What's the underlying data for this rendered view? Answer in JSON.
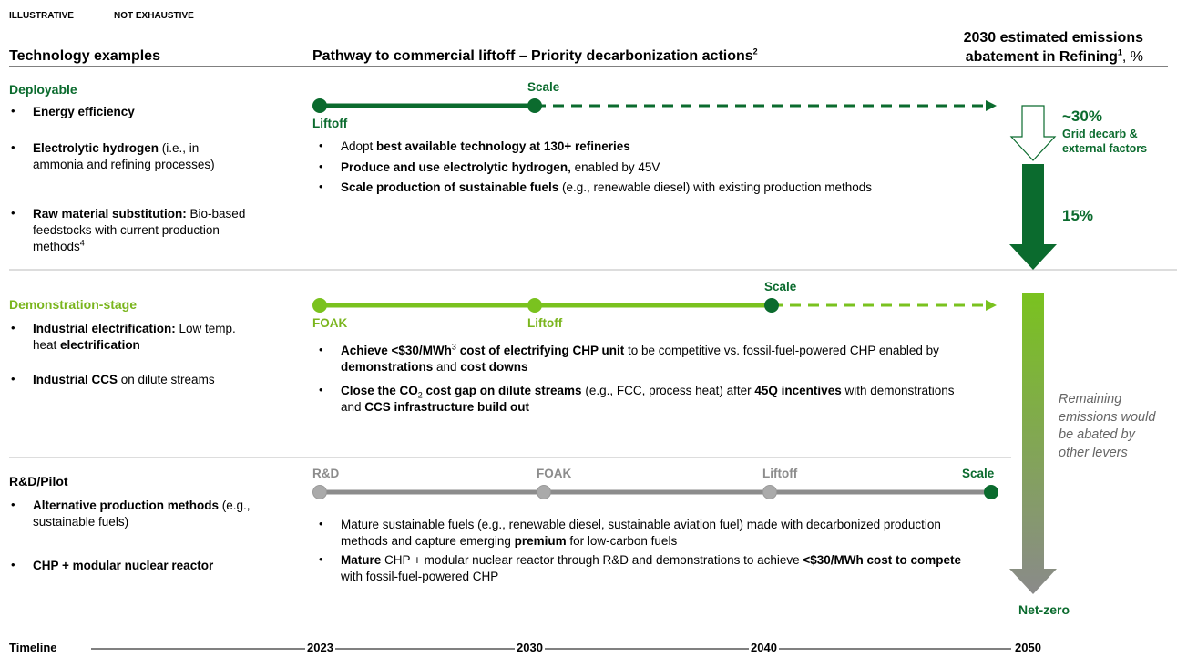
{
  "labels": {
    "illustrative": "ILLUSTRATIVE",
    "not_exhaustive": "NOT EXHAUSTIVE"
  },
  "headers": {
    "technology": "Technology examples",
    "pathway": [
      {
        "text": "Pathway to commercial liftoff – Priority decarbonization actions"
      },
      {
        "text": "2",
        "sup": true
      }
    ],
    "abatement": [
      [
        {
          "text": "2030 estimated emissions"
        }
      ],
      [
        {
          "text": "abatement in Refining"
        },
        {
          "text": "1",
          "sup": true
        },
        {
          "text": ", %",
          "normal": true
        }
      ]
    ]
  },
  "sections": [
    {
      "title": "Deployable",
      "color": "#0b6b2e",
      "examples": [
        [
          {
            "text": "Energy efficiency",
            "bold": true
          }
        ],
        [
          {
            "text": "Electrolytic hydrogen",
            "bold": true
          },
          {
            "text": " (i.e., in ammonia and refining processes)"
          }
        ],
        [
          {
            "text": "Raw material substitution:",
            "bold": true
          },
          {
            "text": " Bio-based feedstocks with current production methods"
          },
          {
            "text": "4",
            "sup": true
          }
        ]
      ],
      "milestones": [
        {
          "label": "Liftoff",
          "position": "below"
        },
        {
          "label": "Scale",
          "position": "above"
        }
      ],
      "actions": [
        [
          {
            "text": "Adopt "
          },
          {
            "text": "best available technology at 130+ refineries",
            "bold": true
          }
        ],
        [
          {
            "text": "Produce and use electrolytic hydrogen,",
            "bold": true
          },
          {
            "text": " enabled by 45V"
          }
        ],
        [
          {
            "text": "Scale production of sustainable fuels",
            "bold": true
          },
          {
            "text": " (e.g., renewable diesel) with existing production methods"
          }
        ]
      ]
    },
    {
      "title": "Demonstration-stage",
      "color": "#7ab51d",
      "examples": [
        [
          {
            "text": "Industrial electrification:",
            "bold": true
          },
          {
            "text": " Low temp. heat "
          },
          {
            "text": "electrification",
            "bold": true
          }
        ],
        [
          {
            "text": "Industrial CCS",
            "bold": true
          },
          {
            "text": " on dilute streams"
          }
        ]
      ],
      "milestones": [
        {
          "label": "FOAK",
          "position": "below"
        },
        {
          "label": "Liftoff",
          "position": "below"
        },
        {
          "label": "Scale",
          "position": "above",
          "color": "#0b6b2e"
        }
      ],
      "actions": [
        [
          {
            "text": "Achieve <$30/MWh",
            "bold": true
          },
          {
            "text": "3",
            "sup": true
          },
          {
            "text": " cost of electrifying CHP unit",
            "bold": true
          },
          {
            "text": " to be competitive vs. fossil-fuel-powered CHP enabled by "
          },
          {
            "text": "demonstrations",
            "bold": true
          },
          {
            "text": " and "
          },
          {
            "text": "cost downs",
            "bold": true
          }
        ],
        [
          {
            "text": "Close the CO",
            "bold": true
          },
          {
            "text": "2",
            "sub": true
          },
          {
            "text": " cost gap on dilute streams",
            "bold": true
          },
          {
            "text": " (e.g., FCC, process heat) after "
          },
          {
            "text": "45Q incentives",
            "bold": true
          },
          {
            "text": " with demonstrations and "
          },
          {
            "text": "CCS infrastructure build out",
            "bold": true
          }
        ]
      ]
    },
    {
      "title": "R&D/Pilot",
      "color": "#8c8c8c",
      "examples": [
        [
          {
            "text": "Alternative production methods",
            "bold": true
          },
          {
            "text": " (e.g., sustainable fuels)"
          }
        ],
        [
          {
            "text": "CHP + modular nuclear reactor",
            "bold": true
          }
        ]
      ],
      "milestones": [
        {
          "label": "R&D",
          "position": "above"
        },
        {
          "label": "FOAK",
          "position": "above"
        },
        {
          "label": "Liftoff",
          "position": "above"
        },
        {
          "label": "Scale",
          "position": "above",
          "color": "#0b6b2e"
        }
      ],
      "actions": [
        [
          {
            "text": "Mature sustainable fuels (e.g., renewable diesel, sustainable aviation fuel) made with decarbonized production methods and capture emerging "
          },
          {
            "text": "premium",
            "bold": true
          },
          {
            "text": " for low-carbon fuels"
          }
        ],
        [
          {
            "text": "Mature",
            "bold": true
          },
          {
            "text": " CHP + modular nuclear reactor through R&D and demonstrations to achieve "
          },
          {
            "text": "<$30/MWh cost to compete",
            "bold": true
          },
          {
            "text": " with fossil-fuel-powered CHP"
          }
        ]
      ]
    }
  ],
  "abatement": {
    "grid_value": "~30%",
    "grid_label": "Grid decarb & external factors",
    "value": "15%",
    "remaining": "Remaining emissions would be abated by other levers",
    "net_zero": "Net-zero"
  },
  "timeline": {
    "label": "Timeline",
    "years": [
      "2023",
      "2030",
      "2040",
      "2050"
    ]
  }
}
